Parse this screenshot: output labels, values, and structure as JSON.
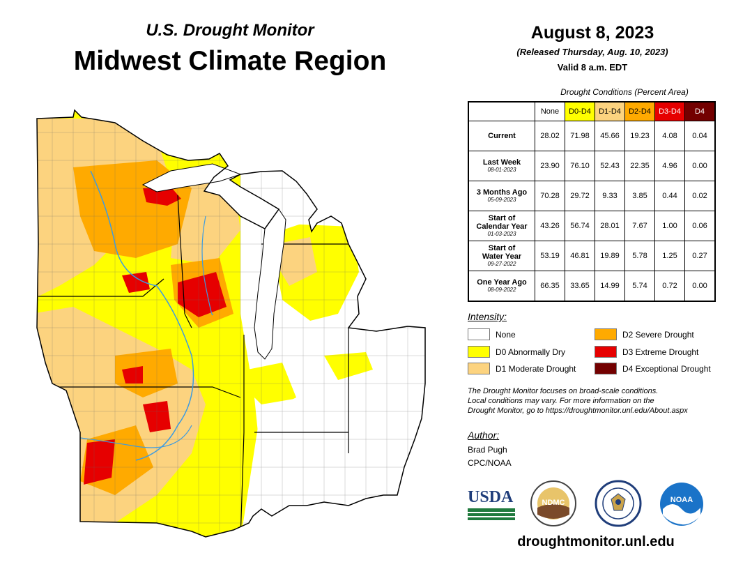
{
  "header": {
    "subtitle": "U.S. Drought Monitor",
    "title": "Midwest Climate Region",
    "date": "August 8, 2023",
    "released": "(Released Thursday, Aug. 10, 2023)",
    "valid": "Valid 8 a.m. EDT"
  },
  "table": {
    "caption": "Drought Conditions (Percent Area)",
    "columns": [
      "None",
      "D0-D4",
      "D1-D4",
      "D2-D4",
      "D3-D4",
      "D4"
    ],
    "column_colors": [
      "#ffffff",
      "#ffff00",
      "#fcd37f",
      "#ffaa00",
      "#e60000",
      "#730000"
    ],
    "rows": [
      {
        "label": "Current",
        "date": "",
        "values": [
          "28.02",
          "71.98",
          "45.66",
          "19.23",
          "4.08",
          "0.04"
        ]
      },
      {
        "label": "Last Week",
        "date": "08-01-2023",
        "values": [
          "23.90",
          "76.10",
          "52.43",
          "22.35",
          "4.96",
          "0.00"
        ]
      },
      {
        "label": "3 Months Ago",
        "date": "05-09-2023",
        "values": [
          "70.28",
          "29.72",
          "9.33",
          "3.85",
          "0.44",
          "0.02"
        ]
      },
      {
        "label_line1": "Start of",
        "label": "Calendar Year",
        "date": "01-03-2023",
        "values": [
          "43.26",
          "56.74",
          "28.01",
          "7.67",
          "1.00",
          "0.06"
        ]
      },
      {
        "label_line1": "Start of",
        "label": "Water Year",
        "date": "09-27-2022",
        "values": [
          "53.19",
          "46.81",
          "19.89",
          "5.78",
          "1.25",
          "0.27"
        ]
      },
      {
        "label": "One Year Ago",
        "date": "08-09-2022",
        "values": [
          "66.35",
          "33.65",
          "14.99",
          "5.74",
          "0.72",
          "0.00"
        ]
      }
    ]
  },
  "legend": {
    "heading": "Intensity:",
    "items": [
      {
        "label": "None",
        "color": "#ffffff"
      },
      {
        "label": "D0 Abnormally Dry",
        "color": "#ffff00"
      },
      {
        "label": "D1 Moderate Drought",
        "color": "#fcd37f"
      },
      {
        "label": "D2 Severe Drought",
        "color": "#ffaa00"
      },
      {
        "label": "D3 Extreme Drought",
        "color": "#e60000"
      },
      {
        "label": "D4 Exceptional Drought",
        "color": "#730000"
      }
    ]
  },
  "note": {
    "line1": "The Drought Monitor focuses on broad-scale conditions.",
    "line2": "Local conditions may vary. For more information on the",
    "line3": "Drought Monitor, go to https://droughtmonitor.unl.edu/About.aspx"
  },
  "author": {
    "heading": "Author:",
    "name": "Brad Pugh",
    "org": "CPC/NOAA"
  },
  "logos": {
    "usda": "USDA",
    "ndmc": "NDMC",
    "noaa": "NOAA"
  },
  "footer": {
    "site": "droughtmonitor.unl.edu"
  },
  "map": {
    "colors": {
      "none": "#ffffff",
      "d0": "#ffff00",
      "d1": "#fcd37f",
      "d2": "#ffaa00",
      "d3": "#e60000",
      "d4": "#730000",
      "water": "#3d9be0"
    }
  }
}
